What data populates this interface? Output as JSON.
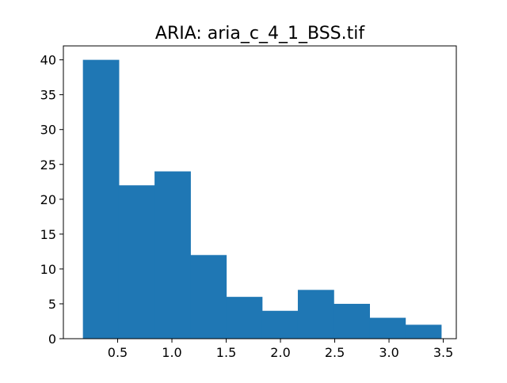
{
  "chart_data": {
    "type": "bar",
    "subtype": "histogram",
    "title": "ARIA: aria_c_4_1_BSS.tif",
    "xlabel": "",
    "ylabel": "",
    "bin_edges": [
      0.18,
      0.51,
      0.84,
      1.17,
      1.5,
      1.83,
      2.16,
      2.49,
      2.82,
      3.15,
      3.48
    ],
    "values": [
      40,
      22,
      24,
      12,
      6,
      4,
      7,
      5,
      3,
      2
    ],
    "xlim": [
      0.0,
      3.62
    ],
    "ylim": [
      0,
      42
    ],
    "x_ticks": [
      0.5,
      1.0,
      1.5,
      2.0,
      2.5,
      3.0,
      3.5
    ],
    "x_tick_labels": [
      "0.5",
      "1.0",
      "1.5",
      "2.0",
      "2.5",
      "3.0",
      "3.5"
    ],
    "y_ticks": [
      0,
      5,
      10,
      15,
      20,
      25,
      30,
      35,
      40
    ],
    "y_tick_labels": [
      "0",
      "5",
      "10",
      "15",
      "20",
      "25",
      "30",
      "35",
      "40"
    ],
    "bar_color": "#1f77b4",
    "grid": false,
    "legend": "none"
  }
}
